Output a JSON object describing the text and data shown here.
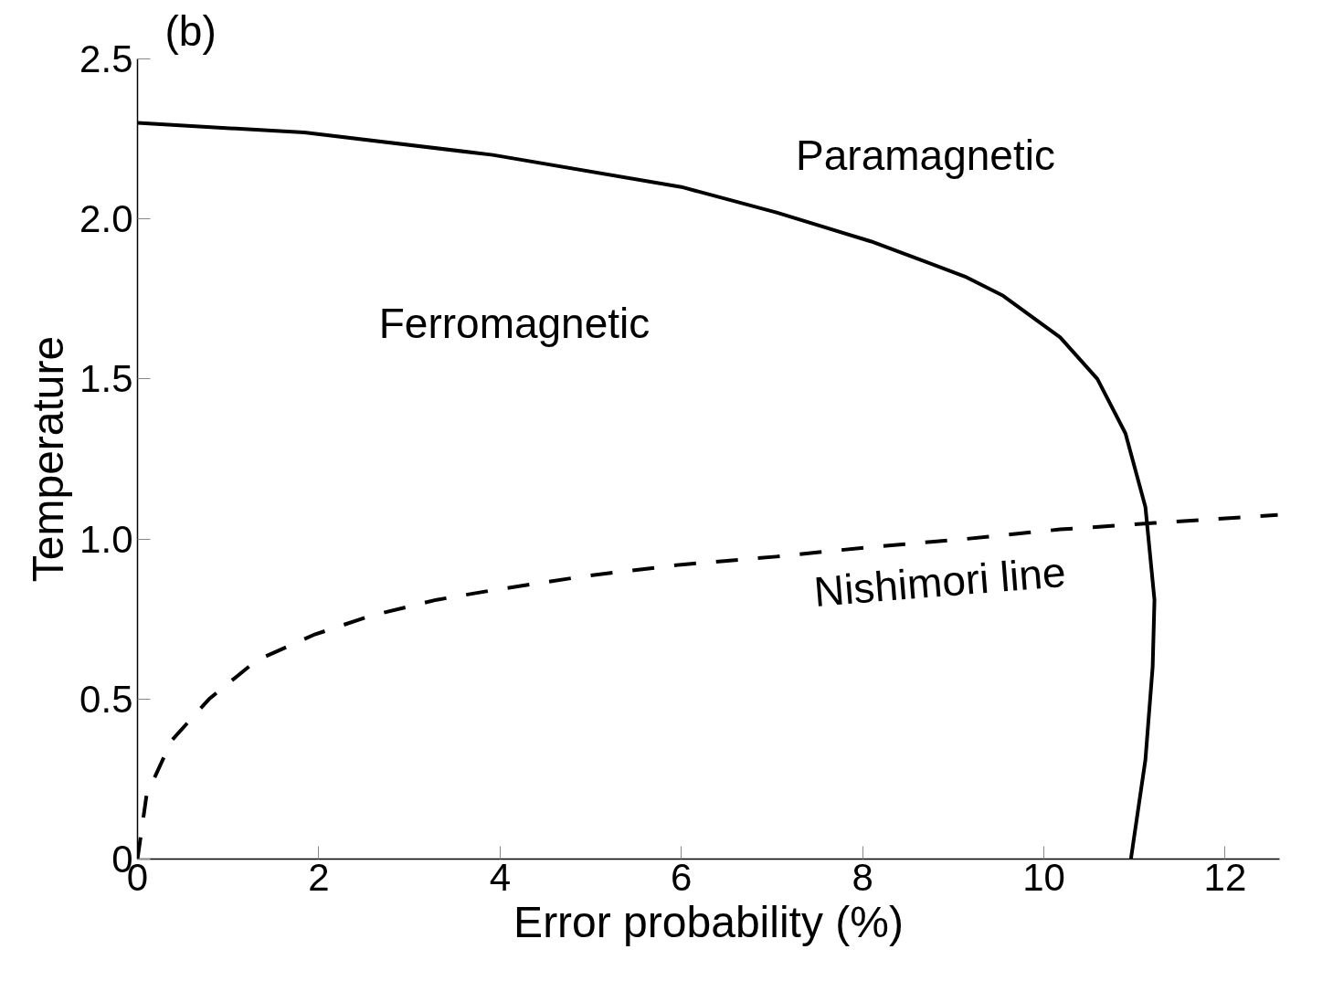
{
  "chart_data": {
    "type": "line",
    "title": "(b)",
    "xlabel": "Error probability (%)",
    "ylabel": "Temperature",
    "xlim": [
      0,
      12.6
    ],
    "ylim": [
      0,
      2.5
    ],
    "xticks": [
      0,
      2,
      4,
      6,
      8,
      10,
      12
    ],
    "yticks": [
      0,
      0.5,
      {
        "value": 1,
        "label": "1.0"
      },
      1.5,
      {
        "value": 2,
        "label": "2.0"
      },
      2.5
    ],
    "grid": false,
    "series": [
      {
        "color": "#000000",
        "line_style": "solid",
        "x": [
          0,
          1.84,
          3.92,
          6.0,
          7.05,
          8.09,
          9.13,
          9.55,
          10.18,
          10.59,
          10.9,
          11.12,
          11.22,
          11.2,
          11.12,
          10.96
        ],
        "values": [
          2.3,
          2.27,
          2.2,
          2.1,
          2.02,
          1.93,
          1.82,
          1.76,
          1.63,
          1.5,
          1.33,
          1.1,
          0.81,
          0.6,
          0.31,
          0
        ]
      },
      {
        "name": "Nishimori line",
        "color": "#000000",
        "line_style": "dashed",
        "x": [
          0,
          0.1,
          0.375,
          0.79,
          1.31,
          1.94,
          2.57,
          3.3,
          3.92,
          4.96,
          6.0,
          7.05,
          8.09,
          9.13,
          10.18,
          11.22,
          12.58
        ],
        "values": [
          0,
          0.2,
          0.37,
          0.5,
          0.62,
          0.7,
          0.76,
          0.81,
          0.84,
          0.885,
          0.92,
          0.945,
          0.975,
          1.0,
          1.03,
          1.05,
          1.075
        ]
      }
    ],
    "annotations": [
      "Paramagnetic",
      "Ferromagnetic"
    ]
  }
}
